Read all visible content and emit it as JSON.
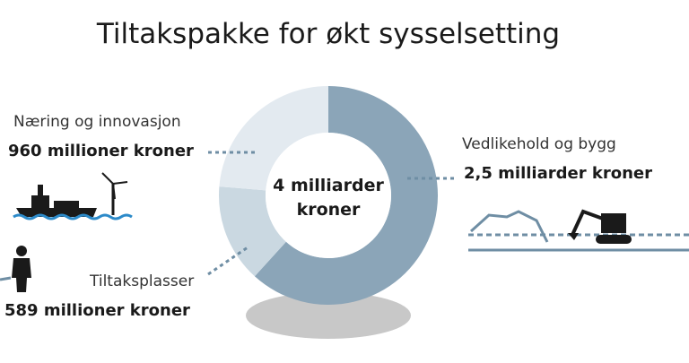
{
  "chart_data": {
    "type": "pie",
    "title": "Tiltakspakke for økt sysselsetting",
    "categories": [
      "Vedlikehold og bygg",
      "Tiltaksplasser",
      "Næring og innovasjon"
    ],
    "values": [
      2500,
      589,
      960
    ],
    "value_labels": [
      "2,5 milliarder kroner",
      "589 millioner kroner",
      "960 millioner kroner"
    ],
    "colors": [
      "#8ba5b8",
      "#cad8e1",
      "#e3eaf0"
    ],
    "center_label": [
      "4 milliarder",
      "kroner"
    ]
  }
}
